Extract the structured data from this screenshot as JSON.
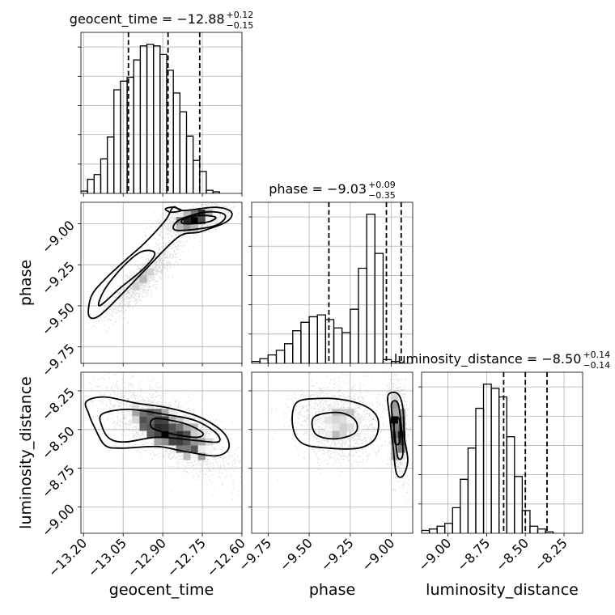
{
  "chart_data": {
    "type": "corner",
    "parameters": [
      "geocent_time",
      "phase",
      "luminosity_distance"
    ],
    "titles": [
      {
        "param": "geocent_time",
        "label": "geocent_time",
        "median": "−12.88",
        "plus": "+0.12",
        "minus": "−0.15"
      },
      {
        "param": "phase",
        "label": "phase",
        "median": "−9.03",
        "plus": "+0.09",
        "minus": "−0.35"
      },
      {
        "param": "luminosity_distance",
        "label": "luminosity_distance",
        "median": "−8.50",
        "plus": "+0.14",
        "minus": "−0.14"
      }
    ],
    "xlims": {
      "geocent_time": [
        -13.21,
        -12.6
      ],
      "phase": [
        -9.85,
        -8.87
      ],
      "luminosity_distance": [
        -9.17,
        -8.13
      ]
    },
    "ylims": {
      "phase": [
        -9.85,
        -8.87
      ],
      "luminosity_distance": [
        -9.17,
        -8.13
      ]
    },
    "ticks": {
      "geocent_time": [
        -13.2,
        -13.05,
        -12.9,
        -12.75,
        -12.6
      ],
      "phase": [
        -9.75,
        -9.5,
        -9.25,
        -9.0
      ],
      "luminosity_distance": [
        -9.0,
        -8.75,
        -8.5,
        -8.25
      ]
    },
    "tick_labels": {
      "geocent_time": [
        "−13.20",
        "−13.05",
        "−12.90",
        "−12.75",
        "−12.60"
      ],
      "phase": [
        "−9.75",
        "−9.50",
        "−9.25",
        "−9.00"
      ],
      "luminosity_distance": [
        "−9.00",
        "−8.75",
        "−8.50",
        "−8.25"
      ]
    },
    "quantiles": {
      "geocent_time": [
        -13.03,
        -12.88,
        -12.76
      ],
      "phase": [
        -9.38,
        -9.03,
        -8.94
      ],
      "luminosity_distance": [
        -8.64,
        -8.5,
        -8.36
      ]
    },
    "histograms": {
      "geocent_time": {
        "start": -13.21,
        "bin_width": 0.025,
        "counts": [
          3,
          18,
          24,
          44,
          72,
          132,
          143,
          148,
          170,
          188,
          190,
          188,
          177,
          157,
          128,
          104,
          73,
          42,
          28,
          4,
          2
        ]
      },
      "phase": {
        "start": -9.85,
        "bin_width": 0.05,
        "counts": [
          2,
          5,
          9,
          14,
          21,
          35,
          44,
          50,
          52,
          47,
          38,
          33,
          58,
          102,
          160,
          118,
          4,
          2
        ]
      },
      "luminosity_distance": {
        "start": -9.17,
        "bin_width": 0.05,
        "counts": [
          2,
          3,
          5,
          7,
          18,
          38,
          60,
          88,
          105,
          102,
          96,
          68,
          40,
          16,
          5,
          3,
          1
        ]
      }
    },
    "grid": true,
    "colors": {
      "hist": "#000000",
      "samples": "#b0b0b0",
      "grid": "#b0b0b0",
      "axes": "#000000"
    }
  }
}
